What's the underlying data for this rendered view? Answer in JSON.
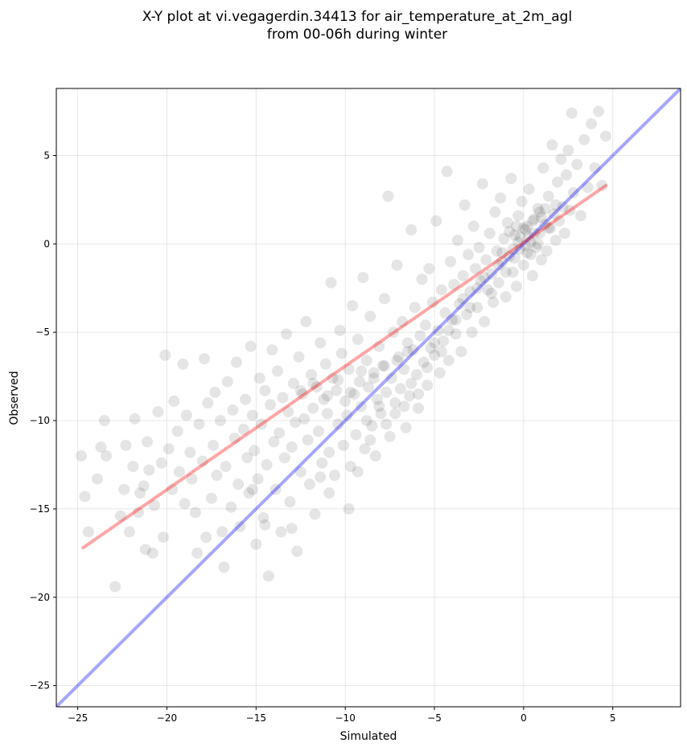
{
  "chart_data": {
    "type": "scatter",
    "title_line1": "X-Y plot at vi.vegagerdin.34413 for air_temperature_at_2m_agl",
    "title_line2": "from 00-06h during winter",
    "xlabel": "Simulated",
    "ylabel": "Observed",
    "xlim": [
      -26.2,
      8.8
    ],
    "ylim": [
      -26.2,
      8.8
    ],
    "x_ticks": [
      -25,
      -20,
      -15,
      -10,
      -5,
      0,
      5
    ],
    "y_ticks": [
      -25,
      -20,
      -15,
      -10,
      -5,
      0,
      5
    ],
    "grid": true,
    "point_color": "#000000",
    "point_alpha": 0.1,
    "identity_line": {
      "color": "#0000ff",
      "alpha": 0.35,
      "points": [
        [
          -26.2,
          -26.2
        ],
        [
          8.8,
          8.8
        ]
      ]
    },
    "fit_line": {
      "color": "#ff0000",
      "alpha": 0.35,
      "points": [
        [
          -24.7,
          -17.2
        ],
        [
          4.6,
          3.3
        ]
      ]
    },
    "points": [
      [
        -24.8,
        -12.0
      ],
      [
        -24.6,
        -14.3
      ],
      [
        -24.4,
        -16.3
      ],
      [
        -23.9,
        -13.3
      ],
      [
        -23.7,
        -11.5
      ],
      [
        -23.5,
        -10.0
      ],
      [
        -23.4,
        -12.0
      ],
      [
        -22.9,
        -19.4
      ],
      [
        -22.6,
        -15.4
      ],
      [
        -22.4,
        -13.9
      ],
      [
        -22.3,
        -11.4
      ],
      [
        -22.1,
        -16.3
      ],
      [
        -21.9,
        -12.6
      ],
      [
        -21.8,
        -9.9
      ],
      [
        -21.6,
        -15.2
      ],
      [
        -21.5,
        -14.1
      ],
      [
        -21.3,
        -13.7
      ],
      [
        -21.2,
        -17.3
      ],
      [
        -21.1,
        -11.2
      ],
      [
        -21.0,
        -12.8
      ],
      [
        -20.8,
        -17.5
      ],
      [
        -20.7,
        -14.8
      ],
      [
        -20.5,
        -9.5
      ],
      [
        -20.3,
        -12.4
      ],
      [
        -20.2,
        -16.6
      ],
      [
        -20.1,
        -6.3
      ],
      [
        -19.9,
        -11.6
      ],
      [
        -19.7,
        -13.9
      ],
      [
        -19.6,
        -8.9
      ],
      [
        -19.4,
        -10.6
      ],
      [
        -19.3,
        -12.9
      ],
      [
        -19.1,
        -6.8
      ],
      [
        -19.0,
        -14.7
      ],
      [
        -18.9,
        -9.7
      ],
      [
        -18.7,
        -11.8
      ],
      [
        -18.6,
        -13.3
      ],
      [
        -18.4,
        -15.2
      ],
      [
        -18.3,
        -17.5
      ],
      [
        -18.2,
        -10.2
      ],
      [
        -18.0,
        -12.3
      ],
      [
        -17.9,
        -6.5
      ],
      [
        -17.8,
        -16.6
      ],
      [
        -17.7,
        -9.0
      ],
      [
        -17.5,
        -14.4
      ],
      [
        -17.4,
        -11.4
      ],
      [
        -17.3,
        -8.4
      ],
      [
        -17.2,
        -13.1
      ],
      [
        -17.0,
        -10.0
      ],
      [
        -16.9,
        -16.3
      ],
      [
        -16.8,
        -18.3
      ],
      [
        -16.7,
        -12.6
      ],
      [
        -16.6,
        -7.8
      ],
      [
        -16.4,
        -14.9
      ],
      [
        -16.3,
        -9.4
      ],
      [
        -16.2,
        -11.0
      ],
      [
        -16.1,
        -6.7
      ],
      [
        -16.0,
        -13.6
      ],
      [
        -15.9,
        -16.0
      ],
      [
        -15.7,
        -10.5
      ],
      [
        -15.6,
        -8.8
      ],
      [
        -15.5,
        -12.1
      ],
      [
        -15.4,
        -14.1
      ],
      [
        -15.3,
        -5.8
      ],
      [
        -15.2,
        -9.7
      ],
      [
        -15.1,
        -11.7
      ],
      [
        -15.0,
        -17.0
      ],
      [
        -14.9,
        -13.3
      ],
      [
        -14.8,
        -7.6
      ],
      [
        -14.7,
        -10.2
      ],
      [
        -14.6,
        -15.5
      ],
      [
        -14.5,
        -8.3
      ],
      [
        -14.4,
        -12.5
      ],
      [
        -14.3,
        -18.8
      ],
      [
        -14.2,
        -9.1
      ],
      [
        -14.1,
        -6.0
      ],
      [
        -14.0,
        -11.2
      ],
      [
        -13.9,
        -13.9
      ],
      [
        -13.8,
        -7.2
      ],
      [
        -13.7,
        -10.7
      ],
      [
        -13.6,
        -16.3
      ],
      [
        -13.5,
        -8.7
      ],
      [
        -13.4,
        -12.1
      ],
      [
        -13.3,
        -5.1
      ],
      [
        -13.2,
        -9.5
      ],
      [
        -13.1,
        -14.6
      ],
      [
        -13.0,
        -11.5
      ],
      [
        -12.9,
        -7.9
      ],
      [
        -12.8,
        -10.1
      ],
      [
        -12.7,
        -17.4
      ],
      [
        -12.6,
        -6.4
      ],
      [
        -12.5,
        -12.9
      ],
      [
        -12.4,
        -8.5
      ],
      [
        -12.3,
        -9.9
      ],
      [
        -12.2,
        -4.4
      ],
      [
        -12.1,
        -11.1
      ],
      [
        -12.0,
        -13.6
      ],
      [
        -11.9,
        -7.4
      ],
      [
        -11.8,
        -9.3
      ],
      [
        -11.7,
        -15.3
      ],
      [
        -11.6,
        -8.1
      ],
      [
        -11.5,
        -10.6
      ],
      [
        -11.4,
        -5.6
      ],
      [
        -11.3,
        -12.4
      ],
      [
        -11.2,
        -8.8
      ],
      [
        -11.1,
        -6.8
      ],
      [
        -11.0,
        -9.6
      ],
      [
        -10.9,
        -11.8
      ],
      [
        -10.8,
        -2.2
      ],
      [
        -10.7,
        -7.6
      ],
      [
        -10.6,
        -13.1
      ],
      [
        -10.5,
        -8.3
      ],
      [
        -10.4,
        -10.2
      ],
      [
        -10.3,
        -4.9
      ],
      [
        -10.2,
        -6.2
      ],
      [
        -10.1,
        -11.4
      ],
      [
        -10.0,
        -8.9
      ],
      [
        -9.9,
        -9.7
      ],
      [
        -9.8,
        -7.1
      ],
      [
        -9.7,
        -12.6
      ],
      [
        -9.6,
        -3.5
      ],
      [
        -9.5,
        -8.5
      ],
      [
        -9.4,
        -10.8
      ],
      [
        -9.3,
        -5.4
      ],
      [
        -9.2,
        -7.8
      ],
      [
        -9.1,
        -9.2
      ],
      [
        -9.0,
        -1.9
      ],
      [
        -8.9,
        -11.6
      ],
      [
        -8.8,
        -6.6
      ],
      [
        -8.7,
        -8.1
      ],
      [
        -8.6,
        -4.1
      ],
      [
        -8.5,
        -10.3
      ],
      [
        -8.4,
        -7.3
      ],
      [
        -8.3,
        -12.0
      ],
      [
        -8.2,
        -8.8
      ],
      [
        -8.1,
        -5.8
      ],
      [
        -8.0,
        -9.6
      ],
      [
        -7.9,
        -6.9
      ],
      [
        -7.8,
        -3.1
      ],
      [
        -7.7,
        -8.4
      ],
      [
        -7.6,
        2.7
      ],
      [
        -7.5,
        -10.9
      ],
      [
        -7.4,
        -7.6
      ],
      [
        -7.3,
        -5.0
      ],
      [
        -7.2,
        -9.0
      ],
      [
        -7.1,
        -1.2
      ],
      [
        -7.0,
        -6.4
      ],
      [
        -6.9,
        -8.2
      ],
      [
        -6.8,
        -4.4
      ],
      [
        -6.7,
        -7.1
      ],
      [
        -6.6,
        -10.4
      ],
      [
        -6.5,
        -5.6
      ],
      [
        -6.4,
        -8.6
      ],
      [
        -6.3,
        0.8
      ],
      [
        -6.2,
        -6.0
      ],
      [
        -6.1,
        -3.6
      ],
      [
        -6.0,
        -7.4
      ],
      [
        -5.9,
        -9.3
      ],
      [
        -5.8,
        -5.2
      ],
      [
        -5.7,
        -2.0
      ],
      [
        -5.6,
        -6.7
      ],
      [
        -5.5,
        -4.6
      ],
      [
        -5.4,
        -8.0
      ],
      [
        -5.3,
        -1.4
      ],
      [
        -5.2,
        -5.9
      ],
      [
        -5.1,
        -3.3
      ],
      [
        -5.0,
        -6.3
      ],
      [
        -4.9,
        1.3
      ],
      [
        -4.8,
        -4.9
      ],
      [
        -4.7,
        -7.3
      ],
      [
        -4.6,
        -2.6
      ],
      [
        -4.5,
        -5.5
      ],
      [
        -4.4,
        -3.9
      ],
      [
        -4.3,
        4.1
      ],
      [
        -4.2,
        -6.6
      ],
      [
        -4.1,
        -1.0
      ],
      [
        -4.0,
        -4.3
      ],
      [
        -3.9,
        -2.3
      ],
      [
        -3.8,
        -5.1
      ],
      [
        -3.7,
        0.2
      ],
      [
        -3.6,
        -3.4
      ],
      [
        -3.5,
        -6.1
      ],
      [
        -3.4,
        -1.8
      ],
      [
        -3.3,
        2.2
      ],
      [
        -3.2,
        -4.0
      ],
      [
        -3.1,
        -0.6
      ],
      [
        -3.0,
        -2.7
      ],
      [
        -2.9,
        -5.0
      ],
      [
        -2.8,
        1.0
      ],
      [
        -2.7,
        -1.4
      ],
      [
        -2.6,
        -3.6
      ],
      [
        -2.5,
        -0.2
      ],
      [
        -2.4,
        -2.1
      ],
      [
        -2.3,
        3.4
      ],
      [
        -2.2,
        -4.4
      ],
      [
        -2.1,
        -0.9
      ],
      [
        -2.0,
        -2.6
      ],
      [
        -1.9,
        0.6
      ],
      [
        -1.8,
        -1.7
      ],
      [
        -1.7,
        -3.3
      ],
      [
        -1.6,
        1.8
      ],
      [
        -1.5,
        -0.4
      ],
      [
        -1.4,
        -2.2
      ],
      [
        -1.3,
        2.6
      ],
      [
        -1.2,
        -1.0
      ],
      [
        -1.1,
        0.3
      ],
      [
        -1.0,
        -3.0
      ],
      [
        -0.9,
        1.2
      ],
      [
        -0.8,
        -0.7
      ],
      [
        -0.7,
        3.7
      ],
      [
        -0.6,
        -1.6
      ],
      [
        -0.5,
        0.5
      ],
      [
        -0.4,
        -2.4
      ],
      [
        -0.3,
        1.6
      ],
      [
        -0.2,
        -0.3
      ],
      [
        -0.1,
        2.4
      ],
      [
        0.0,
        -1.2
      ],
      [
        0.1,
        0.8
      ],
      [
        0.2,
        -0.5
      ],
      [
        0.3,
        3.1
      ],
      [
        0.4,
        0.1
      ],
      [
        0.5,
        -1.8
      ],
      [
        0.6,
        1.4
      ],
      [
        0.7,
        -0.2
      ],
      [
        0.8,
        2.0
      ],
      [
        0.9,
        0.6
      ],
      [
        1.0,
        -0.9
      ],
      [
        1.1,
        4.3
      ],
      [
        1.2,
        1.1
      ],
      [
        1.3,
        -0.4
      ],
      [
        1.4,
        2.7
      ],
      [
        1.5,
        0.9
      ],
      [
        1.6,
        5.6
      ],
      [
        1.7,
        1.7
      ],
      [
        1.8,
        0.2
      ],
      [
        1.9,
        3.5
      ],
      [
        2.0,
        1.3
      ],
      [
        2.1,
        4.8
      ],
      [
        2.2,
        2.1
      ],
      [
        2.3,
        0.6
      ],
      [
        2.4,
        3.9
      ],
      [
        2.5,
        5.3
      ],
      [
        2.6,
        1.9
      ],
      [
        2.7,
        7.4
      ],
      [
        2.8,
        2.9
      ],
      [
        3.0,
        4.5
      ],
      [
        3.2,
        1.6
      ],
      [
        3.4,
        5.9
      ],
      [
        3.6,
        3.2
      ],
      [
        3.8,
        6.8
      ],
      [
        4.0,
        4.3
      ],
      [
        4.2,
        7.5
      ],
      [
        4.4,
        3.3
      ],
      [
        4.6,
        6.1
      ],
      [
        -15.2,
        -13.9
      ],
      [
        -14.5,
        -15.9
      ],
      [
        -13.0,
        -16.1
      ],
      [
        -11.4,
        -13.2
      ],
      [
        -10.9,
        -14.1
      ],
      [
        -9.8,
        -15.0
      ],
      [
        -9.3,
        -12.9
      ],
      [
        -8.8,
        -10.0
      ],
      [
        -8.6,
        -11.1
      ],
      [
        -8.1,
        -9.2
      ],
      [
        -7.7,
        -10.2
      ],
      [
        -7.2,
        -9.6
      ],
      [
        -6.7,
        -9.2
      ],
      [
        -6.3,
        -7.9
      ],
      [
        -5.9,
        -8.5
      ],
      [
        -5.4,
        -7.0
      ],
      [
        -5.0,
        -5.6
      ],
      [
        -4.6,
        -6.1
      ],
      [
        -4.2,
        -4.9
      ],
      [
        -3.8,
        -4.3
      ],
      [
        -3.4,
        -3.1
      ],
      [
        -3.0,
        -3.6
      ],
      [
        -2.6,
        -2.5
      ],
      [
        -2.2,
        -1.9
      ],
      [
        -1.8,
        -2.8
      ],
      [
        -1.4,
        -1.2
      ],
      [
        -1.0,
        -1.6
      ],
      [
        -0.6,
        -0.3
      ],
      [
        -0.2,
        0.4
      ],
      [
        0.2,
        1.0
      ],
      [
        0.6,
        0.6
      ],
      [
        1.0,
        1.5
      ],
      [
        1.4,
        0.9
      ],
      [
        1.8,
        2.2
      ],
      [
        0.0,
        0.9
      ],
      [
        0.3,
        0.4
      ],
      [
        -0.3,
        0.1
      ],
      [
        0.1,
        -0.1
      ],
      [
        0.5,
        1.3
      ],
      [
        -0.5,
        -0.8
      ],
      [
        0.8,
        0.0
      ],
      [
        -0.8,
        0.7
      ],
      [
        1.2,
        2.0
      ],
      [
        -1.2,
        -0.5
      ],
      [
        0.4,
        -0.6
      ],
      [
        -0.4,
        1.0
      ],
      [
        0.9,
        1.8
      ],
      [
        -12.5,
        -8.3
      ],
      [
        -11.8,
        -7.9
      ],
      [
        -11.0,
        -8.6
      ],
      [
        -10.4,
        -7.7
      ],
      [
        -9.7,
        -8.4
      ],
      [
        -9.1,
        -7.2
      ],
      [
        -8.4,
        -7.6
      ],
      [
        -7.8,
        -6.9
      ],
      [
        -7.1,
        -6.6
      ],
      [
        -6.5,
        -6.1
      ]
    ]
  }
}
